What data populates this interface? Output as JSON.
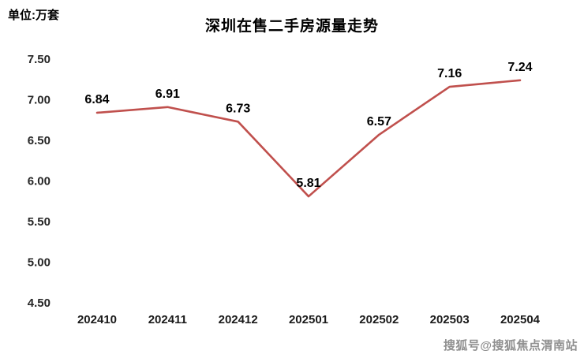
{
  "header": {
    "unit_label": "单位:万套"
  },
  "chart_data": {
    "type": "line",
    "title": "深圳在售二手房源量走势",
    "unit_label": "单位:万套",
    "categories": [
      "202410",
      "202411",
      "202412",
      "202501",
      "202502",
      "202503",
      "202504"
    ],
    "series": [
      {
        "values": [
          6.84,
          6.91,
          6.73,
          5.81,
          6.57,
          7.16,
          7.24
        ],
        "labels": [
          "6.84",
          "6.91",
          "6.73",
          "5.81",
          "6.57",
          "7.16",
          "7.24"
        ]
      }
    ],
    "ylim": [
      4.5,
      7.5
    ],
    "ytick_step": 0.5,
    "ytick_labels": [
      "4.50",
      "5.00",
      "5.50",
      "6.00",
      "6.50",
      "7.00",
      "7.50"
    ],
    "grid": false,
    "legend": "none",
    "line_color": "#c0504d"
  },
  "watermark": {
    "text": "搜狐号@搜狐焦点渭南站"
  }
}
